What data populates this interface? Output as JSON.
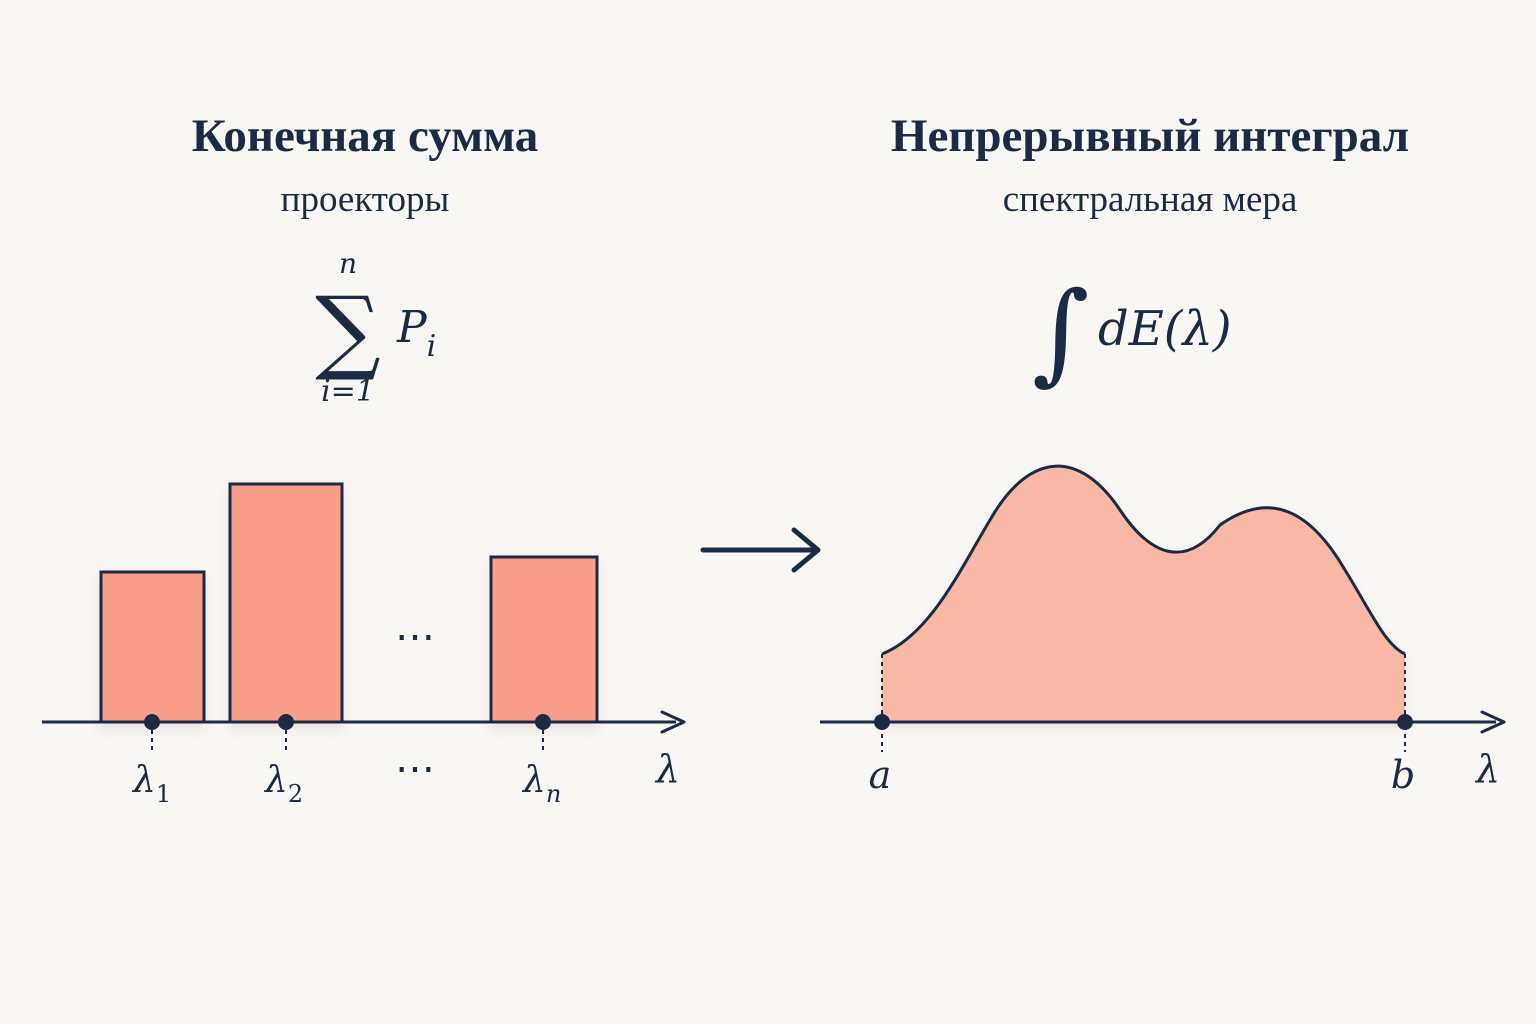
{
  "left": {
    "title": "Конечная сумма",
    "subtitle": "проекторы",
    "formula": {
      "sum_symbol": "∑",
      "upper_limit": "n",
      "lower_limit": "i=1",
      "term": "P",
      "term_subscript": "i"
    },
    "ellipsis_bars": "⋯",
    "ellipsis_labels": "⋯",
    "eigenvalue_labels": [
      {
        "symbol": "λ",
        "subscript": "1"
      },
      {
        "symbol": "λ",
        "subscript": "2"
      },
      {
        "symbol": "λ",
        "subscript": "n"
      }
    ],
    "axis_label": "λ"
  },
  "right": {
    "title": "Непрерывный интеграл",
    "subtitle": "спектральная мера",
    "formula": {
      "integral_symbol": "∫",
      "integrand": "dE(λ)"
    },
    "bound_a": "a",
    "bound_b": "b",
    "axis_label": "λ"
  },
  "colors": {
    "ink": "#1b2a45",
    "bar_fill": "#f89e8a",
    "area_fill": "#f9b8a6",
    "background": "#f9f7f4"
  },
  "icons": {
    "transition": "right-arrow-icon"
  }
}
